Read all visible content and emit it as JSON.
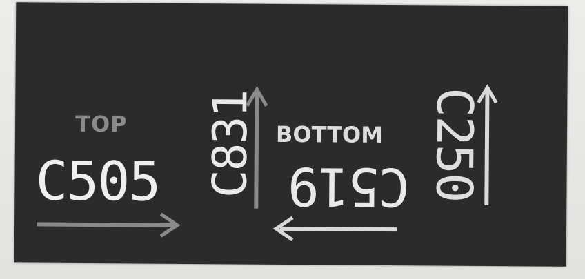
{
  "labels": {
    "top": "TOP",
    "bottom": "BOTTOM",
    "codes": [
      "C505",
      "C831",
      "C519",
      "C250"
    ]
  },
  "icons": {
    "arrow_right": "arrow-right-icon",
    "arrow_up_left": "arrow-up-icon",
    "arrow_left": "arrow-left-icon",
    "arrow_up_right": "arrow-up-icon"
  },
  "colors": {
    "panel": "#2b2b2b",
    "text": "#e9e9e9",
    "top_text": "#8a8a8a",
    "arrow_dim": "#8a8a8a",
    "arrow_bright": "#d9d9d9"
  }
}
